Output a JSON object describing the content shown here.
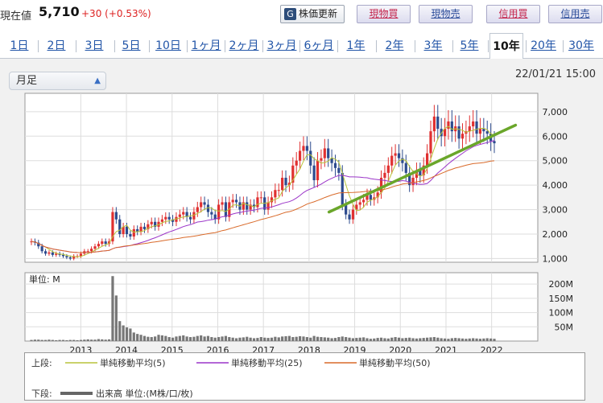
{
  "header": {
    "price_label": "現在値",
    "price_value": "5,710",
    "price_change": "+30 (+0.53%)",
    "refresh_label": "株価更新",
    "buttons": [
      "現物買",
      "現物売",
      "信用買",
      "信用売"
    ]
  },
  "tabs": [
    "1日",
    "2日",
    "3日",
    "5日",
    "10日",
    "1ヶ月",
    "2ヶ月",
    "3ヶ月",
    "6ヶ月",
    "1年",
    "2年",
    "3年",
    "5年",
    "10年",
    "20年",
    "30年"
  ],
  "active_tab": "10年",
  "controls": {
    "interval": "月足",
    "timestamp": "22/01/21 15:00"
  },
  "legend": {
    "upper_label": "上段:",
    "lower_label": "下段:",
    "ma5": "単純移動平均(5)",
    "ma25": "単純移動平均(25)",
    "ma50": "単純移動平均(50)",
    "volume": "出来高 単位:(M株/口/枚)"
  },
  "colors": {
    "up": "#e03030",
    "down": "#2d4b8e",
    "ma5": "#b8c43a",
    "ma25": "#9b35c8",
    "ma50": "#d96a2a",
    "trend": "#6aa62a",
    "volume": "#777777"
  },
  "chart_data": {
    "type": "candlestick",
    "title": "",
    "x_ticks": [
      "2013",
      "2014",
      "2015",
      "2016",
      "2017",
      "2018",
      "2019",
      "2020",
      "2021",
      "2022"
    ],
    "price_axis": {
      "ticks": [
        "1,000",
        "2,000",
        "3,000",
        "4,000",
        "5,000",
        "6,000",
        "7,000"
      ],
      "range": [
        850,
        7750
      ]
    },
    "volume_axis": {
      "label": "単位: M",
      "ticks": [
        "50M",
        "100M",
        "150M",
        "200M"
      ],
      "range": [
        0,
        240
      ]
    },
    "interval": "monthly",
    "close_estimates": [
      1700,
      1650,
      1500,
      1300,
      1200,
      1250,
      1150,
      1200,
      1150,
      1100,
      1050,
      1000,
      1100,
      1100,
      1200,
      1300,
      1300,
      1400,
      1500,
      1600,
      1700,
      1600,
      1700,
      2900,
      2600,
      2000,
      2300,
      2000,
      1900,
      2200,
      2100,
      2300,
      2200,
      2400,
      2500,
      2300,
      2500,
      2600,
      2700,
      2600,
      2500,
      2700,
      2800,
      2900,
      2700,
      2600,
      2900,
      3100,
      3300,
      3200,
      2900,
      2800,
      2600,
      3200,
      3300,
      2700,
      3300,
      3400,
      3300,
      3000,
      3300,
      3000,
      3200,
      3100,
      3500,
      3500,
      3000,
      3300,
      3500,
      3800,
      3800,
      4300,
      4000,
      4100,
      4800,
      5000,
      5400,
      5600,
      5400,
      4800,
      4200,
      5000,
      5100,
      5500,
      5100,
      4900,
      4700,
      4500,
      3200,
      2800,
      2600,
      3000,
      3200,
      3300,
      3400,
      3600,
      3400,
      3500,
      3700,
      4300,
      4500,
      4800,
      5200,
      5300,
      5100,
      4900,
      4500,
      4000,
      4300,
      4600,
      4400,
      4800,
      5300,
      6200,
      6800,
      6300,
      6000,
      6300,
      6600,
      6200,
      6400,
      5900,
      6100,
      6200,
      6400,
      6600,
      6100,
      6300,
      6200,
      6100,
      5800,
      5710
    ],
    "volume_estimates": [
      4,
      5,
      5,
      4,
      4,
      5,
      4,
      3,
      4,
      4,
      3,
      4,
      4,
      3,
      4,
      5,
      6,
      5,
      5,
      7,
      6,
      5,
      6,
      228,
      160,
      70,
      55,
      48,
      44,
      30,
      25,
      22,
      18,
      15,
      14,
      16,
      22,
      20,
      18,
      14,
      12,
      16,
      18,
      20,
      16,
      14,
      15,
      18,
      20,
      16,
      18,
      14,
      12,
      14,
      16,
      18,
      14,
      12,
      10,
      12,
      13,
      15,
      12,
      10,
      11,
      14,
      12,
      11,
      12,
      15,
      13,
      16,
      17,
      18,
      14,
      15,
      17,
      16,
      14,
      12,
      18,
      15,
      14,
      13,
      12,
      10,
      11,
      14,
      16,
      14,
      12,
      10,
      11,
      12,
      13,
      10,
      8,
      9,
      11,
      12,
      10,
      9,
      12,
      14,
      12,
      10,
      11,
      12,
      10,
      9,
      10,
      11,
      12,
      13,
      14,
      12,
      10,
      9,
      8,
      10,
      11,
      10,
      9,
      8,
      9,
      10,
      9,
      8,
      9,
      10,
      9,
      8
    ],
    "trendline": {
      "start": {
        "year": 2018.55,
        "price": 2900
      },
      "end": {
        "year": 2022.5,
        "price": 6450
      }
    }
  }
}
